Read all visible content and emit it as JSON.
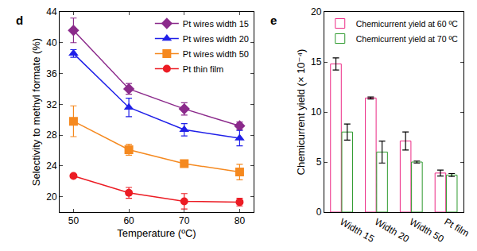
{
  "chart_data": [
    {
      "type": "line",
      "title": "d",
      "x": [
        50,
        60,
        70,
        80
      ],
      "x_label": "Temperature (ºC)",
      "y_label": "Selectivity to methyl formate (%)",
      "xlim": [
        47.5,
        82.5
      ],
      "xticks": [
        50,
        60,
        70,
        80
      ],
      "ylim": [
        18,
        44
      ],
      "yticks": [
        20,
        24,
        28,
        32,
        36,
        40,
        44
      ],
      "grid": false,
      "legend": "upper right",
      "series": [
        {
          "name": "Pt wires width 15",
          "color": "#8b2a8b",
          "marker": "diamond",
          "line_style": "solid",
          "values": [
            41.6,
            34.0,
            31.4,
            29.2
          ],
          "errors": [
            1.6,
            0.7,
            0.8,
            0.5
          ]
        },
        {
          "name": "Pt wires width 20",
          "color": "#1f1fe8",
          "marker": "triangle-up",
          "line_style": "solid",
          "values": [
            38.6,
            31.6,
            28.7,
            27.6
          ],
          "errors": [
            0.5,
            1.2,
            0.8,
            1.0
          ]
        },
        {
          "name": "Pt wires width 50",
          "color": "#f5891f",
          "marker": "square",
          "line_style": "solid",
          "values": [
            29.8,
            26.1,
            24.3,
            23.2
          ],
          "errors": [
            2.0,
            0.7,
            0.2,
            1.0
          ]
        },
        {
          "name": "Pt thin film",
          "color": "#ec1c24",
          "marker": "circle",
          "line_style": "solid",
          "values": [
            22.7,
            20.5,
            19.4,
            19.3
          ],
          "errors": [
            0.2,
            0.7,
            1.0,
            0.5
          ]
        }
      ]
    },
    {
      "type": "bar",
      "title": "e",
      "categories": [
        "Width 15",
        "Width 20",
        "Width 50",
        "Pt film"
      ],
      "y_label": "Chemicurrent yield (× 10⁻⁴)",
      "ylim": [
        0,
        20
      ],
      "yticks": [
        0,
        5,
        10,
        15,
        20
      ],
      "grid": false,
      "legend": "upper left",
      "series": [
        {
          "name": "Chemicurrent yield at 60 ºC",
          "color": "#ec2a85",
          "values": [
            14.8,
            11.4,
            7.1,
            3.9
          ],
          "errors": [
            0.6,
            0.1,
            0.9,
            0.3
          ]
        },
        {
          "name": "Chemicurrent yield at 70 ºC",
          "color": "#2e9a2e",
          "values": [
            8.0,
            6.0,
            5.0,
            3.7
          ],
          "errors": [
            0.8,
            1.1,
            0.1,
            0.15
          ]
        }
      ]
    }
  ]
}
